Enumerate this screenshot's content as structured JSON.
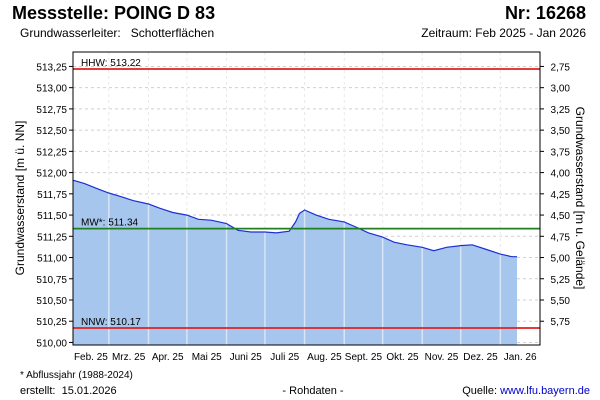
{
  "header": {
    "title": "Messstelle: POING D 83",
    "number": "Nr: 16268",
    "aquifer_label": "Grundwasserleiter:",
    "aquifer_value": "Schotterflächen",
    "period": "Zeitraum: Feb 2025 - Jan 2026"
  },
  "footer": {
    "note": "* Abflussjahr (1988-2024)",
    "created_label": "erstellt:",
    "created_date": "15.01.2026",
    "raw": "- Rohdaten -",
    "source_label": "Quelle:",
    "source_url": "www.lfu.bayern.de"
  },
  "chart_data": {
    "type": "area",
    "ylabel": "Grundwasserstand [m ü. NN]",
    "ylabel_right": "Grundwasserstand [m u. Gelände]",
    "ylim": [
      509.97,
      513.42
    ],
    "yticks": [
      "510,00",
      "510,25",
      "510,50",
      "510,75",
      "511,00",
      "511,25",
      "511,50",
      "511,75",
      "512,00",
      "512,25",
      "512,50",
      "512,75",
      "513,00",
      "513,25"
    ],
    "yticks_right": [
      "2,75",
      "3,00",
      "3,25",
      "3,50",
      "3,75",
      "4,00",
      "4,25",
      "4,50",
      "4,75",
      "5,00",
      "5,25",
      "5,50",
      "5,75"
    ],
    "right_axis_offset": 516.0,
    "xticks": [
      "Feb. 25",
      "Mrz. 25",
      "Apr. 25",
      "Mai 25",
      "Juni 25",
      "Juli 25",
      "Aug. 25",
      "Sept. 25",
      "Okt. 25",
      "Nov. 25",
      "Dez. 25",
      "Jan. 26"
    ],
    "grid": true,
    "colors": {
      "area": "#a7c6ee",
      "line": "#1c2fd4",
      "hhw": "#e02020",
      "mw": "#208020",
      "nnw": "#e02020"
    },
    "reference_lines": [
      {
        "label": "HHW: 513.22",
        "value": 513.22
      },
      {
        "label": "MW*: 511.34",
        "value": 511.34
      },
      {
        "label": "NNW: 510.17",
        "value": 510.17
      }
    ],
    "series": [
      {
        "x": [
          "2025-02-01",
          "2025-02-10",
          "2025-02-20",
          "2025-03-01",
          "2025-03-10",
          "2025-03-20",
          "2025-04-01",
          "2025-04-10",
          "2025-04-20",
          "2025-05-01",
          "2025-05-10",
          "2025-05-20",
          "2025-06-01",
          "2025-06-10",
          "2025-06-20",
          "2025-07-01",
          "2025-07-10",
          "2025-07-20",
          "2025-07-25",
          "2025-07-28",
          "2025-08-01",
          "2025-08-10",
          "2025-08-20",
          "2025-09-01",
          "2025-09-10",
          "2025-09-20",
          "2025-10-01",
          "2025-10-10",
          "2025-10-20",
          "2025-11-01",
          "2025-11-10",
          "2025-11-20",
          "2025-12-01",
          "2025-12-10",
          "2025-12-20",
          "2026-01-01",
          "2026-01-10",
          "2026-01-14"
        ],
        "values": [
          511.91,
          511.87,
          511.81,
          511.76,
          511.72,
          511.67,
          511.63,
          511.58,
          511.53,
          511.5,
          511.45,
          511.44,
          511.4,
          511.32,
          511.3,
          511.3,
          511.29,
          511.31,
          511.42,
          511.52,
          511.56,
          511.5,
          511.45,
          511.42,
          511.36,
          511.29,
          511.24,
          511.18,
          511.15,
          511.12,
          511.08,
          511.12,
          511.14,
          511.15,
          511.1,
          511.04,
          511.01,
          511.01
        ]
      }
    ]
  }
}
